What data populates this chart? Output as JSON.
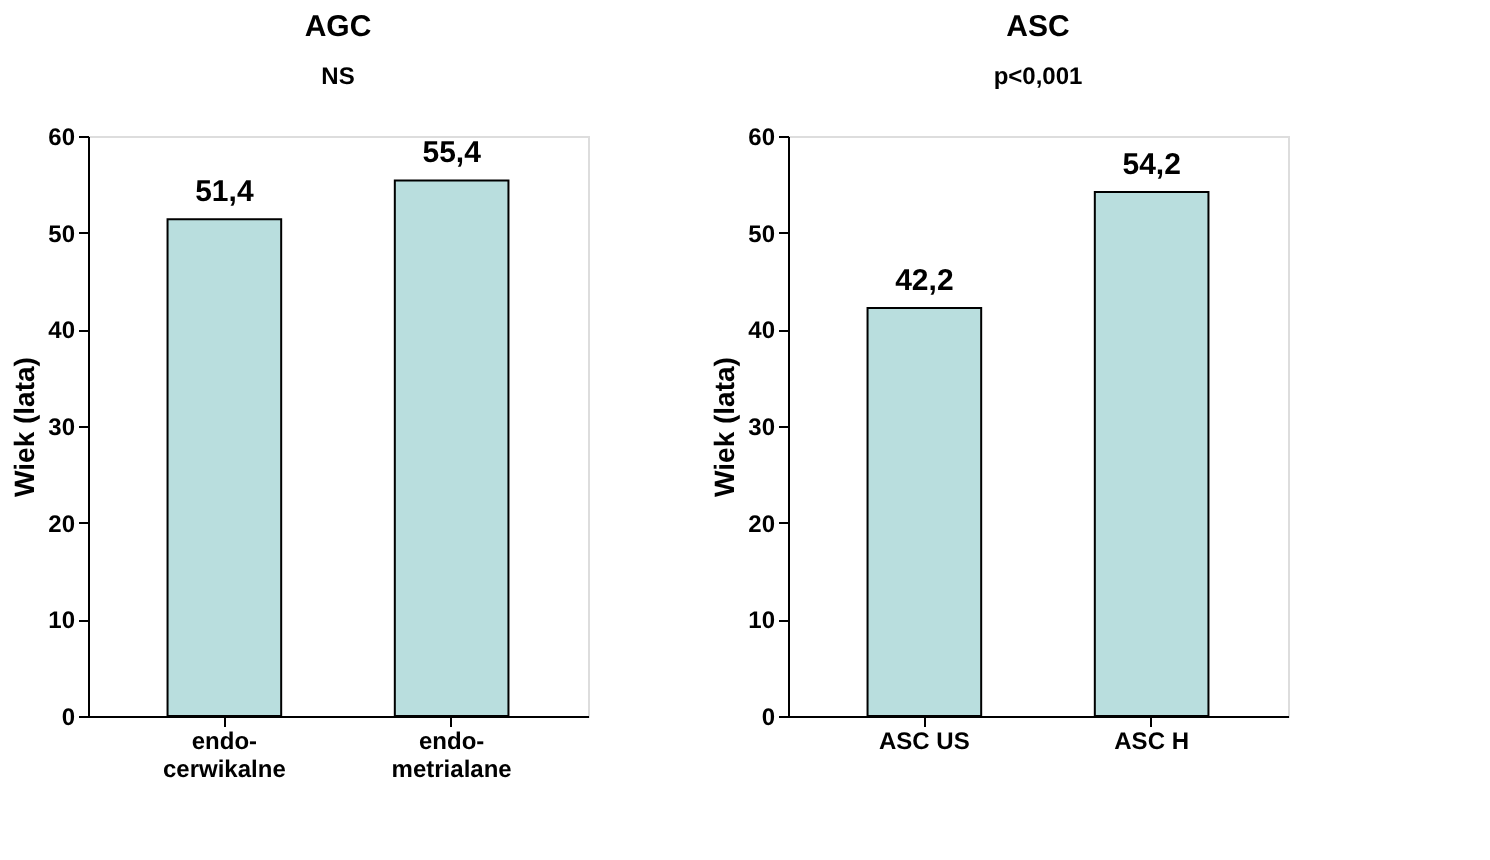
{
  "chart_data": [
    {
      "type": "bar",
      "title": "AGC",
      "annotations": [
        "NS"
      ],
      "ylabel": "Wiek (lata)",
      "categories": [
        "endo-\ncerwikalne",
        "endo-\nmetrialane"
      ],
      "values": [
        51.4,
        55.4
      ],
      "value_labels": [
        "51,4",
        "55,4"
      ],
      "color": "#b9dede",
      "ylim": [
        0,
        60
      ],
      "yticks": [
        0,
        10,
        20,
        30,
        40,
        50,
        60
      ],
      "grid": false
    },
    {
      "type": "bar",
      "title": "ASC",
      "annotations": [
        "p<0,001"
      ],
      "ylabel": "Wiek (lata)",
      "categories": [
        "ASC US",
        "ASC H"
      ],
      "values": [
        42.2,
        54.2
      ],
      "value_labels": [
        "42,2",
        "54,2"
      ],
      "color": "#b9dede",
      "ylim": [
        0,
        60
      ],
      "yticks": [
        0,
        10,
        20,
        30,
        40,
        50,
        60
      ],
      "grid": false
    }
  ]
}
